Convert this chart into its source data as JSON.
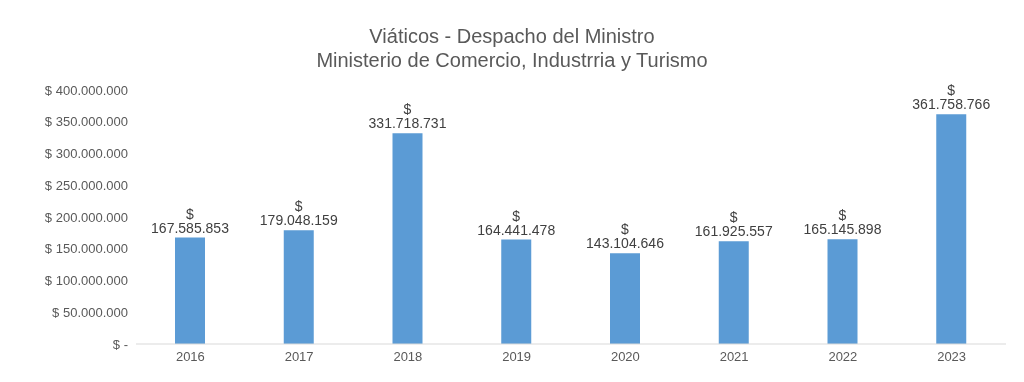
{
  "chart_data": {
    "type": "bar",
    "title": "Viáticos - Despacho del Ministro",
    "subtitle": "Ministerio de Comercio, Industrria y Turismo",
    "categories": [
      "2016",
      "2017",
      "2018",
      "2019",
      "2020",
      "2021",
      "2022",
      "2023"
    ],
    "values": [
      167585853,
      179048159,
      331718731,
      164441478,
      143104646,
      161925557,
      165145898,
      361758766
    ],
    "value_labels": [
      "$ 167.585.853",
      "$ 179.048.159",
      "$ 331.718.731",
      "$ 164.441.478",
      "$ 143.104.646",
      "$ 161.925.557",
      "$ 165.145.898",
      "$ 361.758.766"
    ],
    "color": "#5b9bd5",
    "ylim": [
      0,
      400000000
    ],
    "yticks": [
      {
        "value": 0,
        "label": "$ -"
      },
      {
        "value": 50000000,
        "label": "$ 50.000.000"
      },
      {
        "value": 100000000,
        "label": "$ 100.000.000"
      },
      {
        "value": 150000000,
        "label": "$ 150.000.000"
      },
      {
        "value": 200000000,
        "label": "$ 200.000.000"
      },
      {
        "value": 250000000,
        "label": "$ 250.000.000"
      },
      {
        "value": 300000000,
        "label": "$ 300.000.000"
      },
      {
        "value": 350000000,
        "label": "$ 350.000.000"
      },
      {
        "value": 400000000,
        "label": "$ 400.000.000"
      }
    ],
    "grid": false,
    "legend": false
  }
}
